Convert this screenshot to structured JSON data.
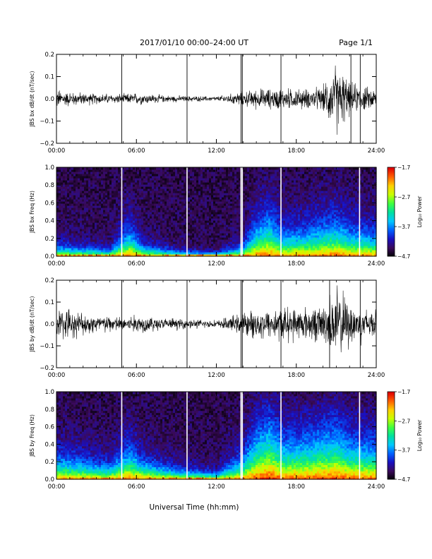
{
  "header": {
    "title": "2017/01/10  00:00–24:00 UT",
    "page": "Page 1/1"
  },
  "footer": {
    "xlabel": "Universal Time (hh:mm)"
  },
  "colors": {
    "trace": "#000000",
    "gap": "#ffffff",
    "colormap": [
      "#000000",
      "#3a0a5a",
      "#1a10c0",
      "#0060ff",
      "#00c8ff",
      "#00e0a0",
      "#40ff40",
      "#c8ff00",
      "#ffd000",
      "#ff6000",
      "#e00000"
    ]
  },
  "chart_data": [
    {
      "id": "bx-waveform",
      "type": "line",
      "ylabel": "JBS bx dB/dt (nT/sec)",
      "xlim": [
        0,
        24
      ],
      "ylim": [
        -0.2,
        0.2
      ],
      "xticks": [
        "00:00",
        "06:00",
        "12:00",
        "18:00",
        "24:00"
      ],
      "yticks": [
        "0.2",
        "0.1",
        "0.0",
        "−0.1",
        "−0.2"
      ],
      "spikes_hours": [
        4.9,
        9.8,
        13.85,
        13.95,
        16.85,
        22.1,
        22.8
      ],
      "amplitude_envelope": [
        {
          "x": 0,
          "y": 0.04
        },
        {
          "x": 1,
          "y": 0.03
        },
        {
          "x": 2,
          "y": 0.025
        },
        {
          "x": 4,
          "y": 0.02
        },
        {
          "x": 5,
          "y": 0.02
        },
        {
          "x": 6,
          "y": 0.025
        },
        {
          "x": 8,
          "y": 0.015
        },
        {
          "x": 10,
          "y": 0.012
        },
        {
          "x": 12,
          "y": 0.01
        },
        {
          "x": 13,
          "y": 0.02
        },
        {
          "x": 15,
          "y": 0.04
        },
        {
          "x": 17,
          "y": 0.045
        },
        {
          "x": 19,
          "y": 0.04
        },
        {
          "x": 20,
          "y": 0.05
        },
        {
          "x": 21,
          "y": 0.15
        },
        {
          "x": 22,
          "y": 0.07
        },
        {
          "x": 23,
          "y": 0.05
        },
        {
          "x": 24,
          "y": 0.04
        }
      ]
    },
    {
      "id": "bx-spectrogram",
      "type": "heatmap",
      "ylabel": "JBS bx Freq (Hz)",
      "xlim": [
        0,
        24
      ],
      "ylim": [
        0,
        1
      ],
      "xticks": [
        "00:00",
        "06:00",
        "12:00",
        "18:00",
        "24:00"
      ],
      "yticks": [
        "1.0",
        "0.8",
        "0.6",
        "0.4",
        "0.2",
        "0.0"
      ],
      "colorbar_label": "Log₁₀ Power",
      "colorbar_ticks": [
        "−1.7",
        "−2.7",
        "−3.7",
        "−4.7"
      ],
      "zlim": [
        -4.7,
        -1.7
      ],
      "gaps_hours": [
        4.9,
        9.8,
        13.85,
        13.95,
        16.85,
        22.75
      ],
      "activity_profile": [
        {
          "x": 0,
          "y": 0.15
        },
        {
          "x": 2,
          "y": 0.12
        },
        {
          "x": 4,
          "y": 0.1
        },
        {
          "x": 5.5,
          "y": 0.35
        },
        {
          "x": 6.5,
          "y": 0.15
        },
        {
          "x": 9,
          "y": 0.08
        },
        {
          "x": 12,
          "y": 0.05
        },
        {
          "x": 14,
          "y": 0.15
        },
        {
          "x": 15,
          "y": 0.4
        },
        {
          "x": 16,
          "y": 0.5
        },
        {
          "x": 17,
          "y": 0.3
        },
        {
          "x": 19,
          "y": 0.35
        },
        {
          "x": 21,
          "y": 0.45
        },
        {
          "x": 22,
          "y": 0.35
        },
        {
          "x": 24,
          "y": 0.3
        }
      ]
    },
    {
      "id": "by-waveform",
      "type": "line",
      "ylabel": "JBS by dB/dt (nT/sec)",
      "xlim": [
        0,
        24
      ],
      "ylim": [
        -0.2,
        0.2
      ],
      "xticks": [
        "00:00",
        "06:00",
        "12:00",
        "18:00",
        "24:00"
      ],
      "yticks": [
        "0.2",
        "0.1",
        "0.0",
        "−0.1",
        "−0.2"
      ],
      "spikes_hours": [
        4.9,
        9.8,
        13.85,
        13.95,
        16.85,
        20.5,
        22.8
      ],
      "amplitude_envelope": [
        {
          "x": 0,
          "y": 0.07
        },
        {
          "x": 1,
          "y": 0.06
        },
        {
          "x": 2,
          "y": 0.045
        },
        {
          "x": 4,
          "y": 0.035
        },
        {
          "x": 5,
          "y": 0.03
        },
        {
          "x": 6,
          "y": 0.04
        },
        {
          "x": 8,
          "y": 0.025
        },
        {
          "x": 10,
          "y": 0.02
        },
        {
          "x": 12,
          "y": 0.015
        },
        {
          "x": 13,
          "y": 0.03
        },
        {
          "x": 15,
          "y": 0.06
        },
        {
          "x": 17,
          "y": 0.07
        },
        {
          "x": 19,
          "y": 0.07
        },
        {
          "x": 20,
          "y": 0.08
        },
        {
          "x": 21,
          "y": 0.16
        },
        {
          "x": 22,
          "y": 0.1
        },
        {
          "x": 23,
          "y": 0.07
        },
        {
          "x": 24,
          "y": 0.06
        }
      ]
    },
    {
      "id": "by-spectrogram",
      "type": "heatmap",
      "ylabel": "JBS by Freq (Hz)",
      "xlim": [
        0,
        24
      ],
      "ylim": [
        0,
        1
      ],
      "xticks": [
        "00:00",
        "06:00",
        "12:00",
        "18:00",
        "24:00"
      ],
      "yticks": [
        "1.0",
        "0.8",
        "0.6",
        "0.4",
        "0.2",
        "0.0"
      ],
      "colorbar_label": "Log₁₀ Power",
      "colorbar_ticks": [
        "−1.7",
        "−2.7",
        "−3.7",
        "−4.7"
      ],
      "zlim": [
        -4.7,
        -1.7
      ],
      "gaps_hours": [
        4.9,
        9.8,
        13.85,
        13.95,
        16.85,
        22.75
      ],
      "activity_profile": [
        {
          "x": 0,
          "y": 0.3
        },
        {
          "x": 2,
          "y": 0.25
        },
        {
          "x": 4,
          "y": 0.2
        },
        {
          "x": 5.5,
          "y": 0.4
        },
        {
          "x": 6.5,
          "y": 0.25
        },
        {
          "x": 9,
          "y": 0.15
        },
        {
          "x": 12,
          "y": 0.1
        },
        {
          "x": 14,
          "y": 0.3
        },
        {
          "x": 15,
          "y": 0.6
        },
        {
          "x": 16,
          "y": 0.75
        },
        {
          "x": 17,
          "y": 0.5
        },
        {
          "x": 19,
          "y": 0.55
        },
        {
          "x": 21,
          "y": 0.65
        },
        {
          "x": 22,
          "y": 0.5
        },
        {
          "x": 24,
          "y": 0.45
        }
      ]
    }
  ]
}
